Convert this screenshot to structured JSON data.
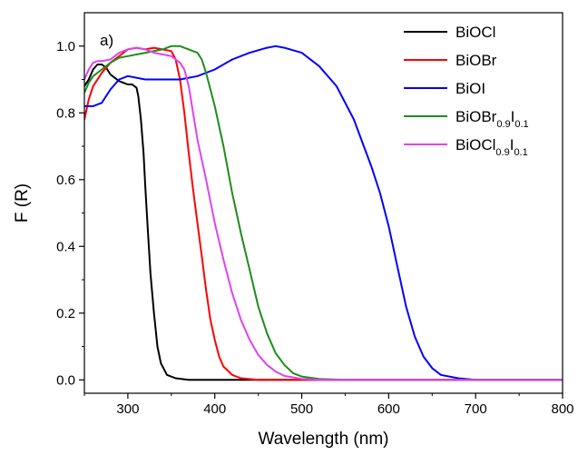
{
  "chart_data": {
    "type": "line",
    "panel_label": "a)",
    "xlabel": "Wavelength (nm)",
    "ylabel": "F (R)",
    "xlim": [
      250,
      800
    ],
    "ylim": [
      -0.04,
      1.1
    ],
    "x_ticks": [
      300,
      400,
      500,
      600,
      700,
      800
    ],
    "x_minor_ticks": [
      250,
      350,
      450,
      550,
      650,
      750
    ],
    "y_ticks": [
      0.0,
      0.2,
      0.4,
      0.6,
      0.8,
      1.0
    ],
    "y_tick_labels": [
      "0.0",
      "0.2",
      "0.4",
      "0.6",
      "0.8",
      "1.0"
    ],
    "legend_position": "top-right",
    "grid": false,
    "series": [
      {
        "name": "BiOCl",
        "legend": [
          {
            "t": "BiOCl"
          }
        ],
        "color": "#000000",
        "points": [
          [
            250,
            0.88
          ],
          [
            255,
            0.9
          ],
          [
            260,
            0.93
          ],
          [
            265,
            0.945
          ],
          [
            270,
            0.945
          ],
          [
            275,
            0.935
          ],
          [
            280,
            0.915
          ],
          [
            285,
            0.905
          ],
          [
            290,
            0.895
          ],
          [
            295,
            0.89
          ],
          [
            300,
            0.885
          ],
          [
            305,
            0.885
          ],
          [
            310,
            0.875
          ],
          [
            312,
            0.85
          ],
          [
            315,
            0.78
          ],
          [
            318,
            0.68
          ],
          [
            320,
            0.58
          ],
          [
            323,
            0.45
          ],
          [
            326,
            0.32
          ],
          [
            330,
            0.2
          ],
          [
            334,
            0.1
          ],
          [
            338,
            0.05
          ],
          [
            345,
            0.015
          ],
          [
            355,
            0.005
          ],
          [
            370,
            0.0
          ],
          [
            400,
            0.0
          ],
          [
            800,
            0.0
          ]
        ]
      },
      {
        "name": "BiOBr",
        "legend": [
          {
            "t": "BiOBr"
          }
        ],
        "color": "#ff0000",
        "points": [
          [
            250,
            0.78
          ],
          [
            255,
            0.84
          ],
          [
            260,
            0.88
          ],
          [
            270,
            0.92
          ],
          [
            280,
            0.95
          ],
          [
            290,
            0.97
          ],
          [
            300,
            0.99
          ],
          [
            310,
            0.995
          ],
          [
            320,
            0.99
          ],
          [
            330,
            0.995
          ],
          [
            340,
            0.99
          ],
          [
            350,
            0.985
          ],
          [
            355,
            0.96
          ],
          [
            360,
            0.9
          ],
          [
            365,
            0.8
          ],
          [
            370,
            0.68
          ],
          [
            375,
            0.57
          ],
          [
            380,
            0.47
          ],
          [
            385,
            0.37
          ],
          [
            390,
            0.27
          ],
          [
            395,
            0.18
          ],
          [
            400,
            0.12
          ],
          [
            405,
            0.07
          ],
          [
            410,
            0.04
          ],
          [
            420,
            0.015
          ],
          [
            430,
            0.005
          ],
          [
            450,
            0.0
          ],
          [
            800,
            0.0
          ]
        ]
      },
      {
        "name": "BiOI",
        "legend": [
          {
            "t": "BiOI"
          }
        ],
        "color": "#0000ff",
        "points": [
          [
            250,
            0.82
          ],
          [
            260,
            0.82
          ],
          [
            270,
            0.83
          ],
          [
            280,
            0.87
          ],
          [
            290,
            0.9
          ],
          [
            300,
            0.91
          ],
          [
            320,
            0.9
          ],
          [
            340,
            0.9
          ],
          [
            360,
            0.9
          ],
          [
            380,
            0.91
          ],
          [
            400,
            0.93
          ],
          [
            420,
            0.96
          ],
          [
            440,
            0.98
          ],
          [
            460,
            0.995
          ],
          [
            470,
            1.0
          ],
          [
            480,
            0.995
          ],
          [
            500,
            0.98
          ],
          [
            520,
            0.94
          ],
          [
            540,
            0.88
          ],
          [
            560,
            0.78
          ],
          [
            580,
            0.64
          ],
          [
            590,
            0.56
          ],
          [
            600,
            0.46
          ],
          [
            610,
            0.34
          ],
          [
            620,
            0.22
          ],
          [
            630,
            0.13
          ],
          [
            640,
            0.07
          ],
          [
            650,
            0.035
          ],
          [
            660,
            0.015
          ],
          [
            680,
            0.005
          ],
          [
            700,
            0.0
          ],
          [
            800,
            0.0
          ]
        ]
      },
      {
        "name": "BiOBr0.9I0.1",
        "legend": [
          {
            "t": "BiOBr"
          },
          {
            "t": "0.9",
            "sub": true
          },
          {
            "t": "I"
          },
          {
            "t": "0.1",
            "sub": true
          }
        ],
        "color": "#1e8c1e",
        "points": [
          [
            250,
            0.86
          ],
          [
            255,
            0.89
          ],
          [
            260,
            0.91
          ],
          [
            270,
            0.93
          ],
          [
            280,
            0.95
          ],
          [
            290,
            0.965
          ],
          [
            300,
            0.97
          ],
          [
            320,
            0.98
          ],
          [
            340,
            0.99
          ],
          [
            350,
            1.0
          ],
          [
            360,
            1.0
          ],
          [
            370,
            0.99
          ],
          [
            375,
            0.985
          ],
          [
            380,
            0.98
          ],
          [
            385,
            0.96
          ],
          [
            390,
            0.92
          ],
          [
            400,
            0.82
          ],
          [
            410,
            0.7
          ],
          [
            420,
            0.56
          ],
          [
            430,
            0.44
          ],
          [
            440,
            0.33
          ],
          [
            450,
            0.22
          ],
          [
            460,
            0.14
          ],
          [
            470,
            0.08
          ],
          [
            480,
            0.045
          ],
          [
            490,
            0.02
          ],
          [
            500,
            0.01
          ],
          [
            520,
            0.003
          ],
          [
            550,
            0.0
          ],
          [
            800,
            0.0
          ]
        ]
      },
      {
        "name": "BiOCl0.9I0.1",
        "legend": [
          {
            "t": "BiOCl"
          },
          {
            "t": "0.9",
            "sub": true
          },
          {
            "t": "I"
          },
          {
            "t": "0.1",
            "sub": true
          }
        ],
        "color": "#dd44ee",
        "points": [
          [
            250,
            0.9
          ],
          [
            255,
            0.93
          ],
          [
            260,
            0.95
          ],
          [
            265,
            0.955
          ],
          [
            270,
            0.955
          ],
          [
            280,
            0.96
          ],
          [
            290,
            0.98
          ],
          [
            300,
            0.99
          ],
          [
            310,
            0.995
          ],
          [
            320,
            0.99
          ],
          [
            330,
            0.98
          ],
          [
            340,
            0.975
          ],
          [
            350,
            0.97
          ],
          [
            355,
            0.96
          ],
          [
            360,
            0.95
          ],
          [
            365,
            0.93
          ],
          [
            370,
            0.88
          ],
          [
            375,
            0.8
          ],
          [
            380,
            0.72
          ],
          [
            390,
            0.6
          ],
          [
            400,
            0.47
          ],
          [
            410,
            0.36
          ],
          [
            420,
            0.26
          ],
          [
            430,
            0.18
          ],
          [
            440,
            0.12
          ],
          [
            450,
            0.075
          ],
          [
            460,
            0.045
          ],
          [
            470,
            0.025
          ],
          [
            480,
            0.012
          ],
          [
            500,
            0.003
          ],
          [
            520,
            0.0
          ],
          [
            800,
            0.0
          ]
        ]
      }
    ]
  }
}
